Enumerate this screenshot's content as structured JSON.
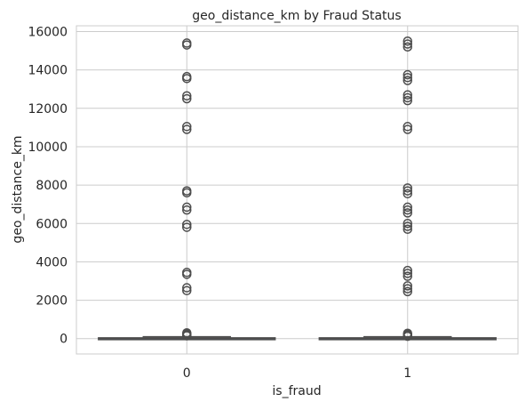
{
  "chart_data": {
    "type": "box",
    "title": "geo_distance_km by Fraud Status",
    "xlabel": "is_fraud",
    "ylabel": "geo_distance_km",
    "categories": [
      "0",
      "1"
    ],
    "ylim": [
      -800,
      16300
    ],
    "yticks": [
      0,
      2000,
      4000,
      6000,
      8000,
      10000,
      12000,
      14000,
      16000
    ],
    "grid": true,
    "box_color": "#4c72b0",
    "line_color": "#4d4d4d",
    "boxes": [
      {
        "category": "0",
        "min": 0,
        "q1": 0,
        "median": 5,
        "q3": 40,
        "max": 95,
        "outliers": [
          150,
          200,
          250,
          300,
          2500,
          2650,
          3350,
          3450,
          5800,
          5950,
          6700,
          6850,
          7600,
          7700,
          10900,
          11050,
          12500,
          12650,
          13550,
          13650,
          15300,
          15400
        ]
      },
      {
        "category": "1",
        "min": 0,
        "q1": 0,
        "median": 5,
        "q3": 40,
        "max": 95,
        "outliers": [
          120,
          180,
          230,
          280,
          2450,
          2600,
          2750,
          3250,
          3400,
          3550,
          5700,
          5850,
          6000,
          6550,
          6700,
          6850,
          7550,
          7700,
          7850,
          10900,
          11050,
          12400,
          12550,
          12700,
          13450,
          13600,
          13750,
          15200,
          15350,
          15500
        ]
      }
    ]
  }
}
